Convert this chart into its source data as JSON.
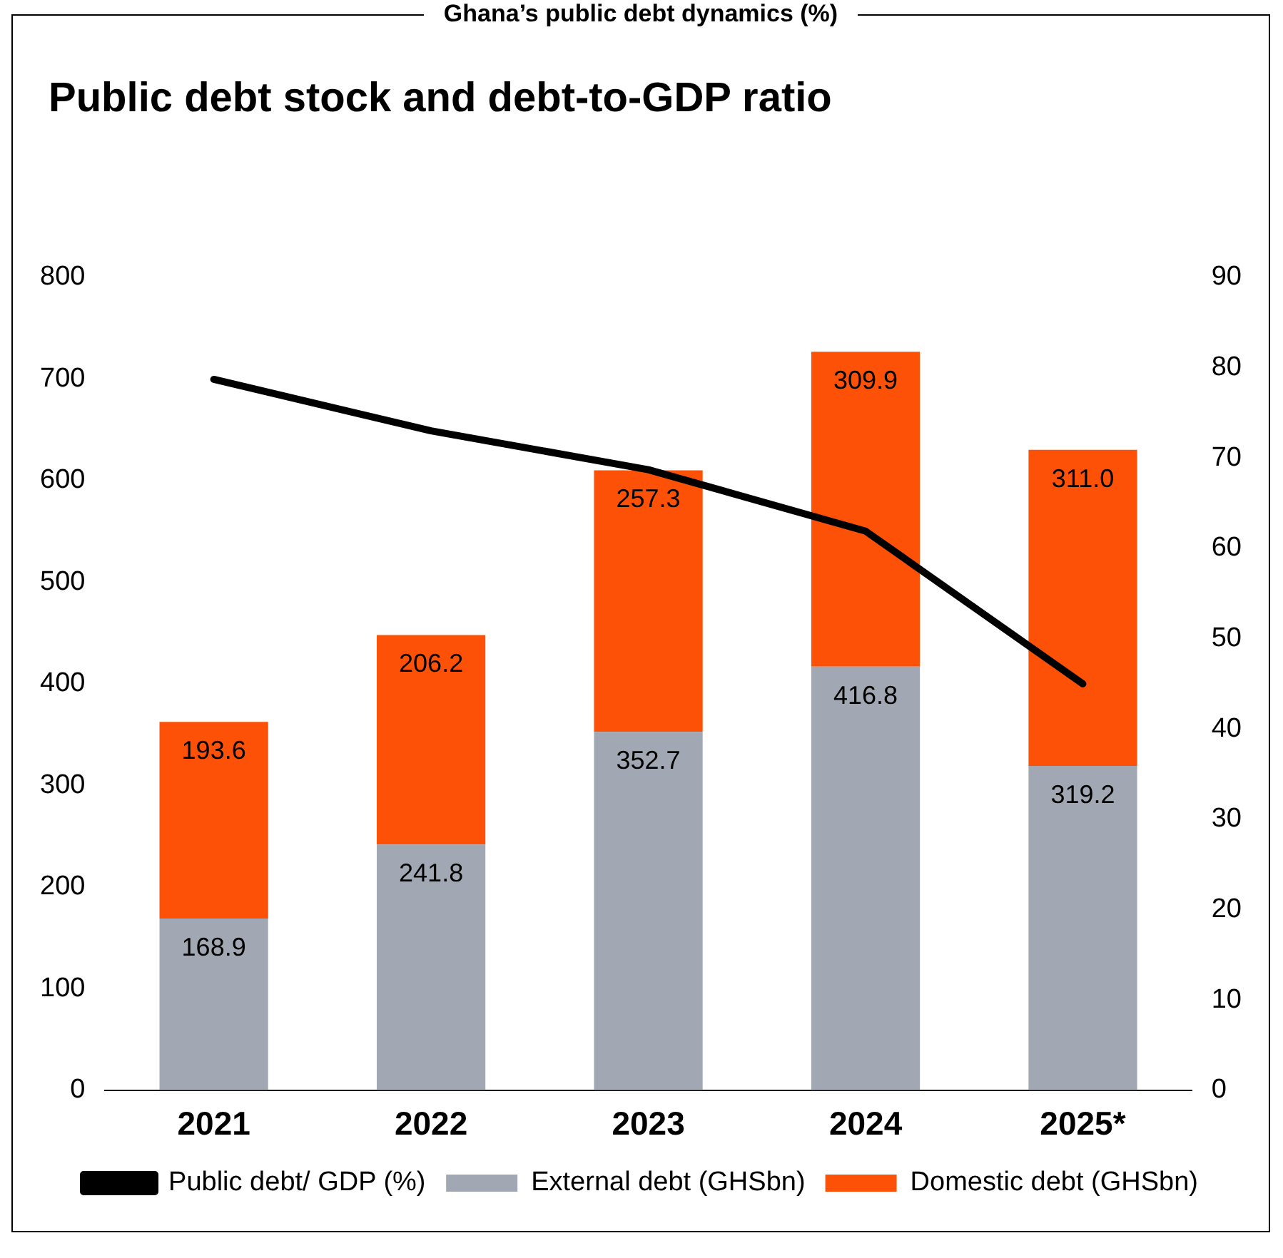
{
  "chart_data": {
    "type": "bar",
    "title": "Public debt stock and debt-to-GDP ratio",
    "annotations": [
      "Ghana’s public debt dynamics (%)"
    ],
    "categories": [
      "2021",
      "2022",
      "2023",
      "2024",
      "2025*"
    ],
    "stacked": true,
    "series": [
      {
        "name": "External debt (GHSbn)",
        "color": "#a2a8b3",
        "values": [
          168.9,
          241.8,
          352.7,
          416.8,
          319.2
        ],
        "value_labels": [
          "168.9",
          "241.8",
          "352.7",
          "416.8",
          "319.2"
        ]
      },
      {
        "name": "Domestic debt (GHSbn)",
        "color": "#fd5108",
        "values": [
          193.6,
          206.2,
          257.3,
          309.9,
          311.0
        ],
        "value_labels": [
          "193.6",
          "206.2",
          "257.3",
          "309.9",
          "311.0"
        ]
      },
      {
        "name": "Public debt/ GDP (%)",
        "type": "line",
        "axis": "y2",
        "color": "#000000",
        "values": [
          78.7,
          73.0,
          68.7,
          61.9,
          45.0
        ],
        "marker": "none"
      }
    ],
    "ylim": [
      0,
      800
    ],
    "yticks": [
      0,
      100,
      200,
      300,
      400,
      500,
      600,
      700,
      800
    ],
    "y2lim": [
      0,
      90
    ],
    "y2ticks": [
      0,
      10,
      20,
      30,
      40,
      50,
      60,
      70,
      80,
      90
    ],
    "grid": false,
    "legend": "bottom"
  }
}
